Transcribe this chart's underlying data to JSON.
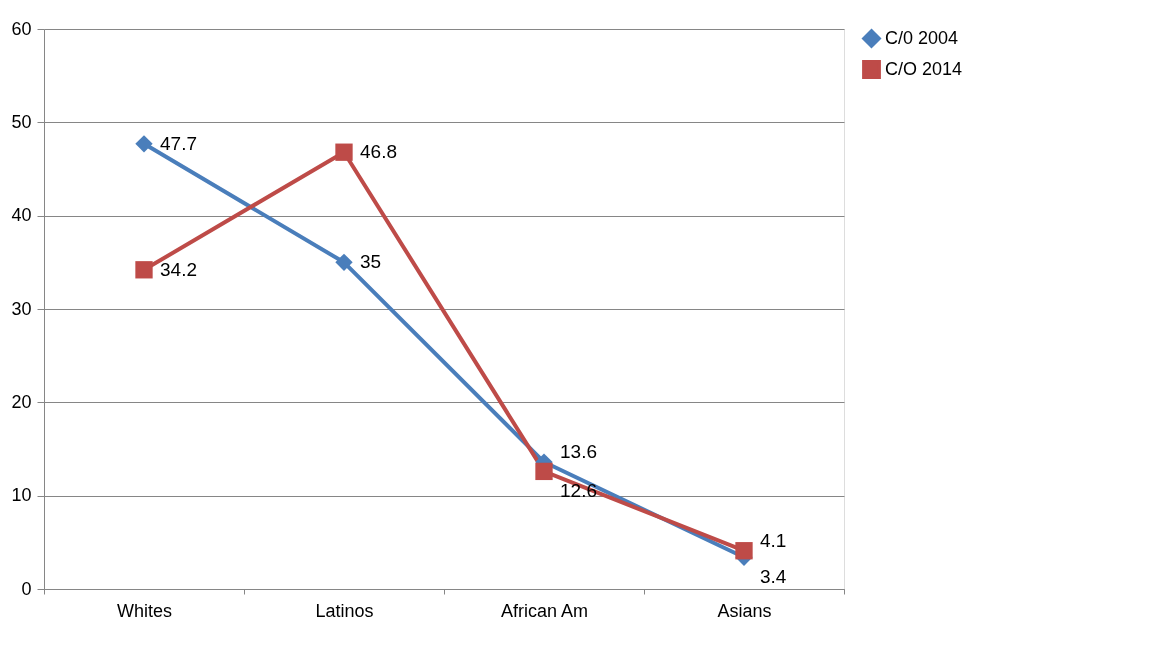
{
  "chart_data": {
    "type": "line",
    "categories": [
      "Whites",
      "Latinos",
      "African Am",
      "Asians"
    ],
    "series": [
      {
        "name": "C/0 2004",
        "color": "#4a7ebb",
        "marker": "diamond",
        "values": [
          47.7,
          35,
          13.6,
          3.4
        ]
      },
      {
        "name": "C/O 2014",
        "color": "#be4b48",
        "marker": "square",
        "values": [
          34.2,
          46.8,
          12.6,
          4.1
        ]
      }
    ],
    "ylim": [
      0,
      60
    ],
    "yticks": [
      0,
      10,
      20,
      30,
      40,
      50,
      60
    ],
    "grid": "y",
    "legend": "right",
    "data_labels": true
  }
}
